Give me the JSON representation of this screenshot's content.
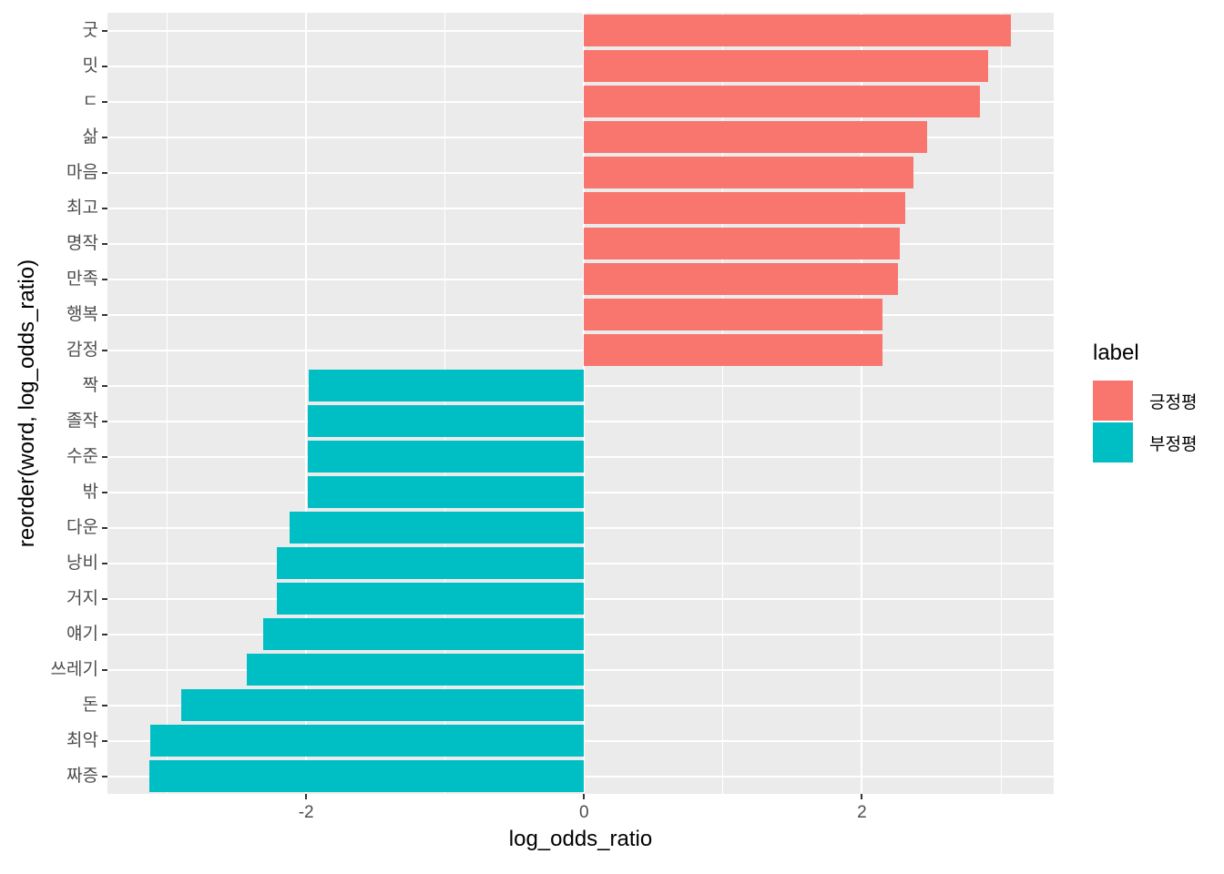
{
  "chart_data": {
    "type": "bar",
    "orientation": "horizontal",
    "title": "",
    "xlabel": "log_odds_ratio",
    "ylabel": "reorder(word, log_odds_ratio)",
    "x_axis": {
      "min": -3.43,
      "max": 3.38,
      "ticks": [
        -2,
        0,
        2
      ],
      "tick_labels": [
        "-2",
        "0",
        "2"
      ],
      "minor_ticks": [
        -3,
        -1,
        1,
        3
      ]
    },
    "grid": "on",
    "legend_position": "right",
    "bars": [
      {
        "word": "굿",
        "value": 3.07,
        "label": "긍정평"
      },
      {
        "word": "밋",
        "value": 2.91,
        "label": "긍정평"
      },
      {
        "word": "ㄷ",
        "value": 2.85,
        "label": "긍정평"
      },
      {
        "word": "삶",
        "value": 2.47,
        "label": "긍정평"
      },
      {
        "word": "마음",
        "value": 2.37,
        "label": "긍정평"
      },
      {
        "word": "최고",
        "value": 2.31,
        "label": "긍정평"
      },
      {
        "word": "명작",
        "value": 2.27,
        "label": "긍정평"
      },
      {
        "word": "만족",
        "value": 2.26,
        "label": "긍정평"
      },
      {
        "word": "행복",
        "value": 2.15,
        "label": "긍정평"
      },
      {
        "word": "감정",
        "value": 2.15,
        "label": "긍정평"
      },
      {
        "word": "짝",
        "value": -1.98,
        "label": "부정평"
      },
      {
        "word": "졸작",
        "value": -1.99,
        "label": "부정평"
      },
      {
        "word": "수준",
        "value": -1.99,
        "label": "부정평"
      },
      {
        "word": "밖",
        "value": -1.99,
        "label": "부정평"
      },
      {
        "word": "다운",
        "value": -2.12,
        "label": "부정평"
      },
      {
        "word": "낭비",
        "value": -2.21,
        "label": "부정평"
      },
      {
        "word": "거지",
        "value": -2.21,
        "label": "부정평"
      },
      {
        "word": "얘기",
        "value": -2.31,
        "label": "부정평"
      },
      {
        "word": "쓰레기",
        "value": -2.43,
        "label": "부정평"
      },
      {
        "word": "돈",
        "value": -2.9,
        "label": "부정평"
      },
      {
        "word": "최악",
        "value": -3.12,
        "label": "부정평"
      },
      {
        "word": "짜증",
        "value": -3.13,
        "label": "부정평"
      }
    ],
    "groups": [
      {
        "label": "긍정평",
        "color": "#F8766D"
      },
      {
        "label": "부정평",
        "color": "#00BFC4"
      }
    ]
  },
  "legend": {
    "title": "label",
    "items": [
      {
        "label": "긍정평",
        "color": "#F8766D"
      },
      {
        "label": "부정평",
        "color": "#00BFC4"
      }
    ]
  },
  "colors": {
    "panel_background": "#EBEBEB",
    "gridline": "#FFFFFF",
    "axis_text": "#4D4D4D",
    "axis_title": "#000000",
    "tick_mark": "#333333",
    "positive_bar": "#F8766D",
    "negative_bar": "#00BFC4"
  }
}
